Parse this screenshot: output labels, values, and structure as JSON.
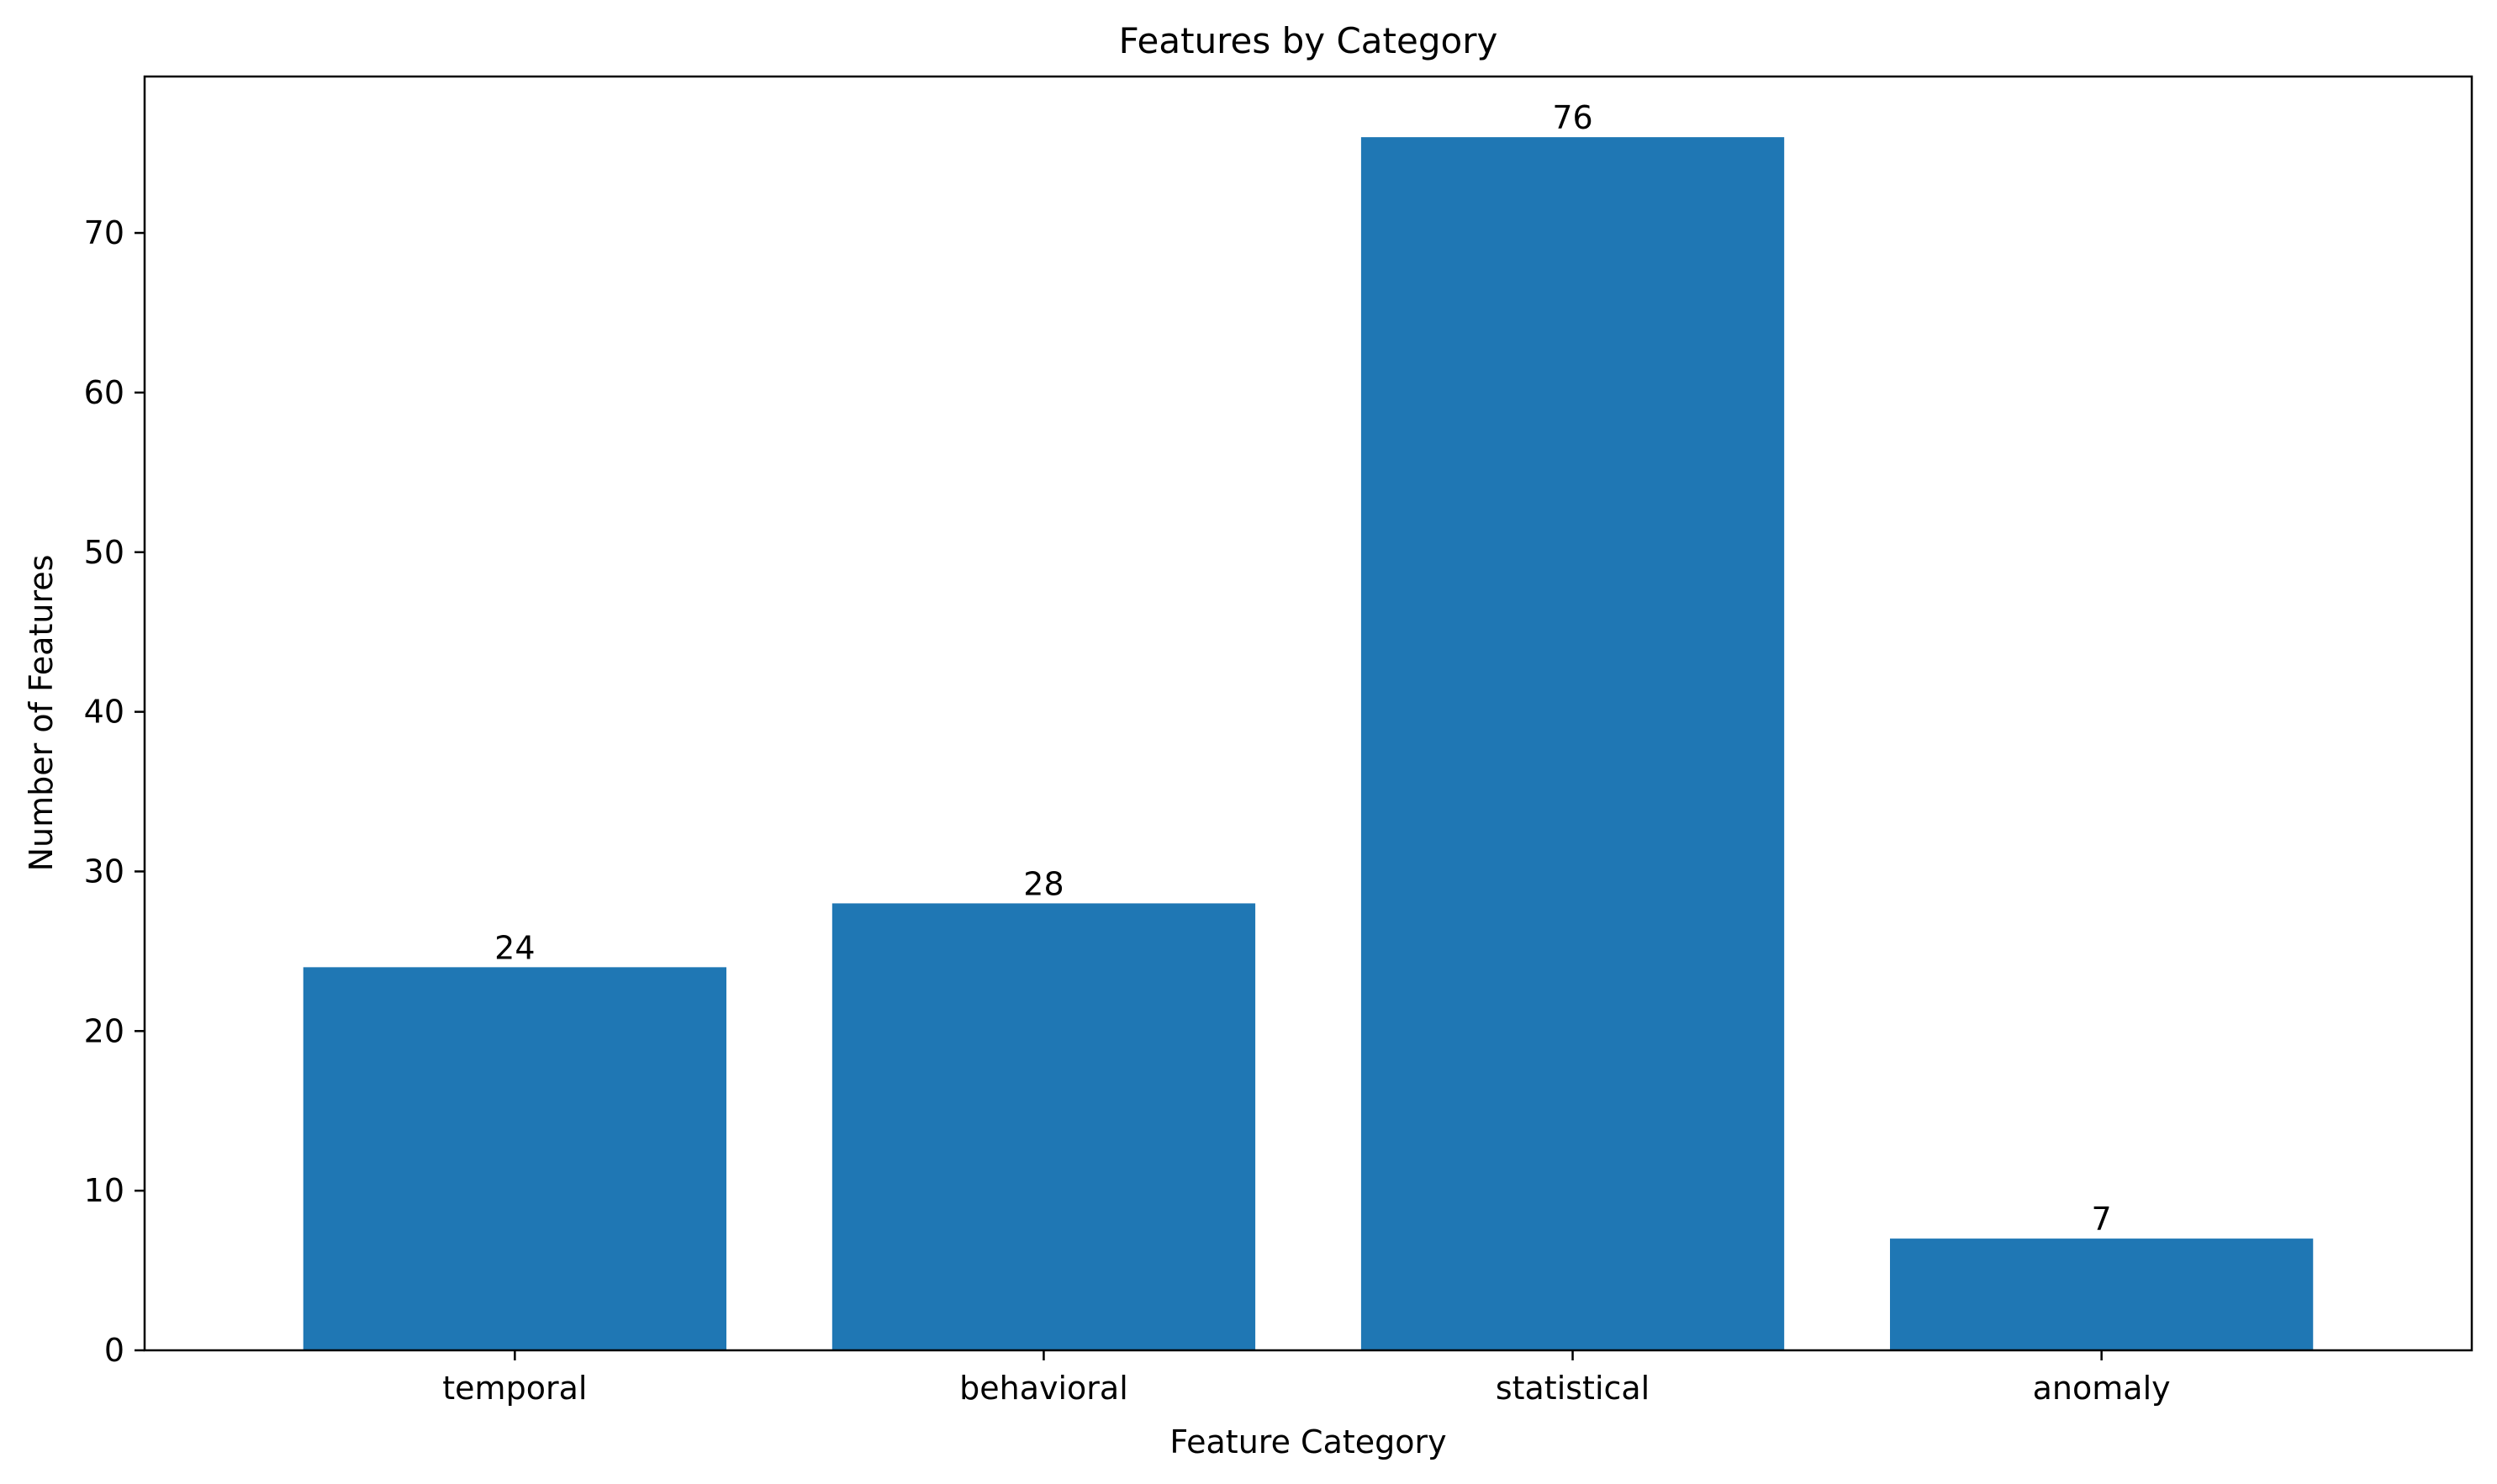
{
  "chart_data": {
    "type": "bar",
    "title": "Features by Category",
    "xlabel": "Feature Category",
    "ylabel": "Number of Features",
    "categories": [
      "temporal",
      "behavioral",
      "statistical",
      "anomaly"
    ],
    "values": [
      24,
      28,
      76,
      7
    ],
    "value_labels": [
      "24",
      "28",
      "76",
      "7"
    ],
    "ylim": [
      0,
      79.8
    ],
    "yticks": [
      0,
      10,
      20,
      30,
      40,
      50,
      60,
      70
    ],
    "ytick_labels": [
      "0",
      "10",
      "20",
      "30",
      "40",
      "50",
      "60",
      "70"
    ],
    "grid": false,
    "legend": "none",
    "bar_color": "#1f77b4"
  }
}
